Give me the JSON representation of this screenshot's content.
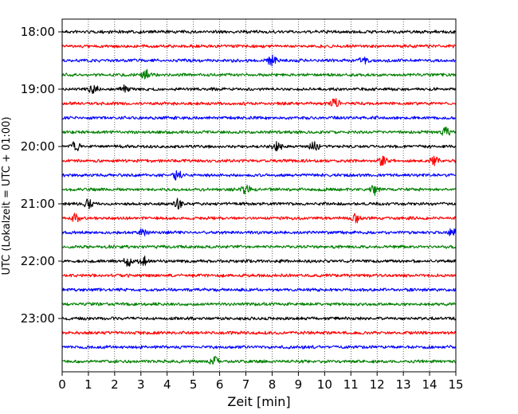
{
  "chart_data": {
    "type": "line",
    "title": "",
    "xlabel": "Zeit  [min]",
    "ylabel": "UTC (Lokalzeit = UTC + 01:00)",
    "xlim": [
      0,
      15
    ],
    "x_ticks": [
      0,
      1,
      2,
      3,
      4,
      5,
      6,
      7,
      8,
      9,
      10,
      11,
      12,
      13,
      14,
      15
    ],
    "x_tick_labels": [
      "0",
      "1",
      "2",
      "3",
      "4",
      "5",
      "6",
      "7",
      "8",
      "9",
      "10",
      "11",
      "12",
      "13",
      "14",
      "15"
    ],
    "x_grid": "dotted vertical lines at each minute",
    "ylim": [
      "18:00",
      "23:45"
    ],
    "y_ticks": [
      "18:00",
      "19:00",
      "20:00",
      "21:00",
      "22:00",
      "23:00"
    ],
    "trace_interval_minutes": 15,
    "trace_colors": [
      "#000000",
      "#ff0000",
      "#0000ff",
      "#008000"
    ],
    "traces": [
      {
        "start": "18:00",
        "color": "#000000"
      },
      {
        "start": "18:15",
        "color": "#ff0000"
      },
      {
        "start": "18:30",
        "color": "#0000ff",
        "events_min": [
          8.0,
          11.5
        ]
      },
      {
        "start": "18:45",
        "color": "#008000",
        "events_min": [
          3.2
        ]
      },
      {
        "start": "19:00",
        "color": "#000000",
        "events_min": [
          1.2,
          2.4
        ]
      },
      {
        "start": "19:15",
        "color": "#ff0000",
        "events_min": [
          10.4
        ]
      },
      {
        "start": "19:30",
        "color": "#0000ff"
      },
      {
        "start": "19:45",
        "color": "#008000",
        "events_min": [
          14.6
        ]
      },
      {
        "start": "20:00",
        "color": "#000000",
        "events_min": [
          0.5,
          8.2,
          9.6
        ]
      },
      {
        "start": "20:15",
        "color": "#ff0000",
        "events_min": [
          12.2,
          14.2
        ]
      },
      {
        "start": "20:30",
        "color": "#0000ff",
        "events_min": [
          4.4
        ]
      },
      {
        "start": "20:45",
        "color": "#008000",
        "events_min": [
          7.0,
          11.9
        ]
      },
      {
        "start": "21:00",
        "color": "#000000",
        "events_min": [
          1.0,
          4.4
        ]
      },
      {
        "start": "21:15",
        "color": "#ff0000",
        "events_min": [
          0.5,
          11.2
        ]
      },
      {
        "start": "21:30",
        "color": "#0000ff",
        "events_min": [
          3.1,
          14.9
        ]
      },
      {
        "start": "21:45",
        "color": "#008000"
      },
      {
        "start": "22:00",
        "color": "#000000",
        "events_min": [
          2.5,
          3.1
        ]
      },
      {
        "start": "22:15",
        "color": "#ff0000"
      },
      {
        "start": "22:30",
        "color": "#0000ff"
      },
      {
        "start": "22:45",
        "color": "#008000"
      },
      {
        "start": "23:00",
        "color": "#000000"
      },
      {
        "start": "23:15",
        "color": "#ff0000"
      },
      {
        "start": "23:30",
        "color": "#0000ff"
      },
      {
        "start": "23:45",
        "color": "#008000",
        "events_min": [
          5.8
        ]
      }
    ]
  }
}
